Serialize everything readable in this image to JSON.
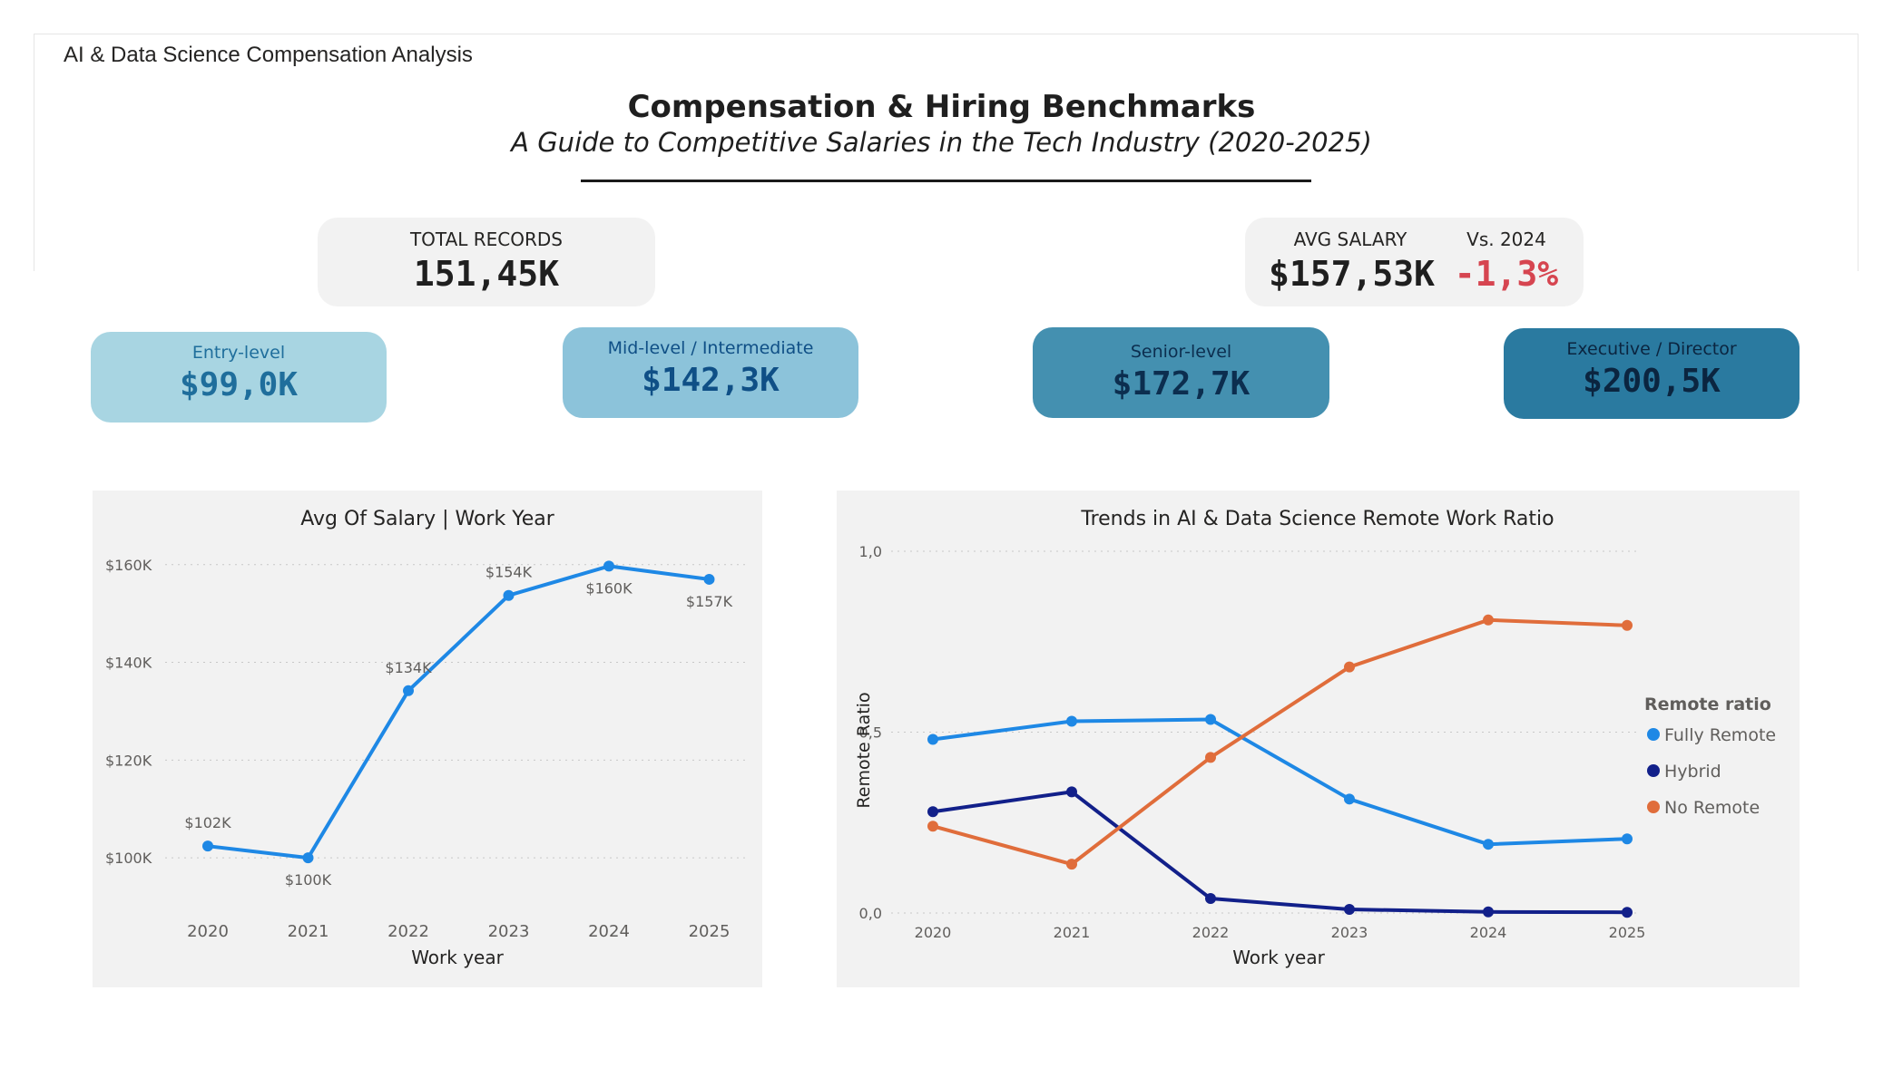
{
  "report": {
    "tab_label": "AI & Data Science Compensation Analysis",
    "title": "Compensation & Hiring Benchmarks",
    "subtitle": "A Guide to Competitive Salaries in the Tech Industry (2020-2025)"
  },
  "kpis": {
    "total_records": {
      "label": "TOTAL RECORDS",
      "value": "151,45K"
    },
    "avg_salary": {
      "label": "AVG SALARY",
      "value": "$157,53K",
      "compare_label": "Vs. 2024",
      "compare_value": "-1,3%",
      "compare_color": "#d64550"
    }
  },
  "levels": [
    {
      "label": "Entry-level",
      "value": "$99,0K",
      "bg": "#a8d5e2",
      "fg": "#1f6e9c"
    },
    {
      "label": "Mid-level / Intermediate",
      "value": "$142,3K",
      "bg": "#8cc3da",
      "fg": "#0f4f86"
    },
    {
      "label": "Senior-level",
      "value": "$172,7K",
      "bg": "#4490b0",
      "fg": "#0c2e4f"
    },
    {
      "label": "Executive / Director",
      "value": "$200,5K",
      "bg": "#2a7aa0",
      "fg": "#0b2540"
    }
  ],
  "chart_data": [
    {
      "type": "line",
      "title": "Avg Of Salary | Work Year",
      "xlabel": "Work year",
      "ylabel": "",
      "x": [
        "2020",
        "2021",
        "2022",
        "2023",
        "2024",
        "2025"
      ],
      "series": [
        {
          "values": [
            102400,
            100000,
            134200,
            153700,
            159700,
            157000
          ],
          "color": "#1e88e5"
        }
      ],
      "data_labels": [
        "$102K",
        "$100K",
        "$134K",
        "$154K",
        "$160K",
        "$157K"
      ],
      "y_ticks": [
        {
          "value": 100000,
          "label": "$100K"
        },
        {
          "value": 120000,
          "label": "$120K"
        },
        {
          "value": 140000,
          "label": "$140K"
        },
        {
          "value": 160000,
          "label": "$160K"
        }
      ],
      "ylim": [
        90000,
        162000
      ],
      "grid": true
    },
    {
      "type": "line",
      "title": "Trends in AI & Data Science Remote Work Ratio",
      "xlabel": "Work year",
      "ylabel": "Remote Ratio",
      "x": [
        "2020",
        "2021",
        "2022",
        "2023",
        "2024",
        "2025"
      ],
      "legend_title": "Remote ratio",
      "legend_position": "right",
      "series": [
        {
          "name": "Fully Remote",
          "values": [
            0.48,
            0.53,
            0.535,
            0.315,
            0.19,
            0.205
          ],
          "color": "#1e88e5"
        },
        {
          "name": "Hybrid",
          "values": [
            0.28,
            0.335,
            0.04,
            0.01,
            0.003,
            0.002
          ],
          "color": "#12208a"
        },
        {
          "name": "No Remote",
          "values": [
            0.24,
            0.135,
            0.43,
            0.68,
            0.81,
            0.795
          ],
          "color": "#e06d3b"
        }
      ],
      "y_ticks": [
        {
          "value": 0.0,
          "label": "0,0"
        },
        {
          "value": 0.5,
          "label": "0,5"
        },
        {
          "value": 1.0,
          "label": "1,0"
        }
      ],
      "ylim": [
        0,
        1
      ],
      "grid": true
    }
  ]
}
